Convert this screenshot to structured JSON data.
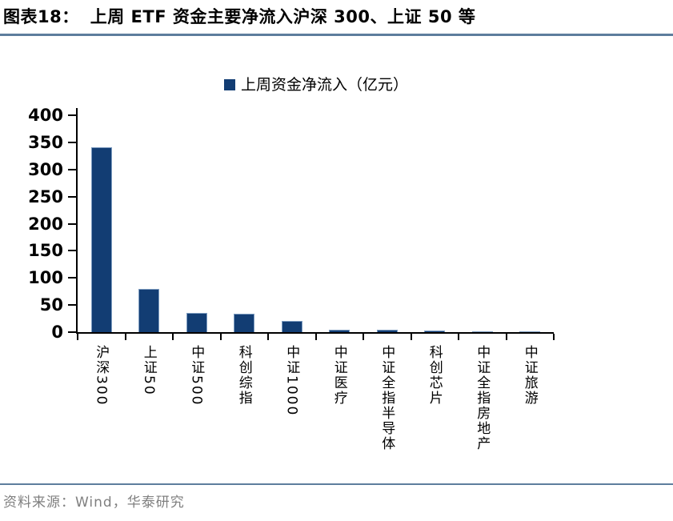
{
  "figure": {
    "label": "图表18：",
    "title": "上周 ETF 资金主要净流入沪深 300、上证 50 等"
  },
  "legend": {
    "label": "上周资金净流入（亿元）",
    "marker_color": "#123d73"
  },
  "chart_data": {
    "type": "bar",
    "title": "上周资金净流入（亿元）",
    "categories": [
      "沪深300",
      "上证50",
      "中证500",
      "科创综指",
      "中证1000",
      "中证医疗",
      "中证全指半导体",
      "科创芯片",
      "中证全指房地产",
      "中证旅游"
    ],
    "values": [
      341,
      79,
      36,
      34,
      21,
      5,
      4,
      3,
      2,
      1
    ],
    "xlabel": "",
    "ylabel": "",
    "ylim": [
      0,
      400
    ],
    "yticks": [
      0,
      50,
      100,
      150,
      200,
      250,
      300,
      350,
      400
    ],
    "grid": false,
    "legend_position": "top",
    "bar_color": "#123d73",
    "axis_color": "#000000"
  },
  "colors": {
    "accent_rule": "#5d7d9d",
    "bar": "#123d73",
    "source_text": "#7f7f7f"
  },
  "source": {
    "text": "资料来源：Wind，华泰研究"
  }
}
